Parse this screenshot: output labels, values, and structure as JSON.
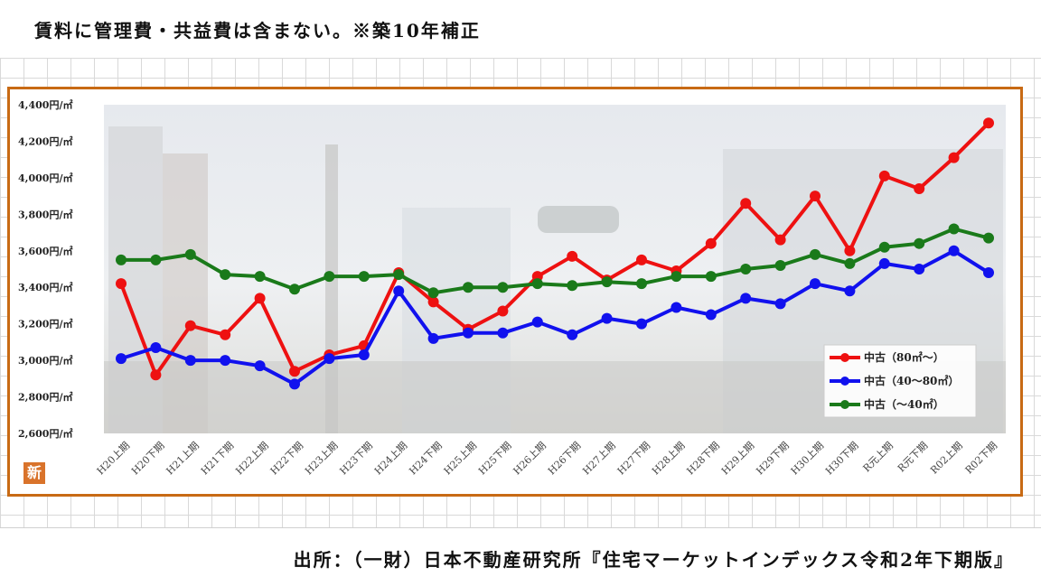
{
  "header": {
    "note": "賃料に管理費・共益費は含まない。※築10年補正"
  },
  "footer": {
    "source": "出所：（一財）日本不動産研究所『住宅マーケットインデックス令和2年下期版』"
  },
  "logo": {
    "label": "新"
  },
  "chart_data": {
    "type": "line",
    "categories": [
      "H20上期",
      "H20下期",
      "H21上期",
      "H21下期",
      "H22上期",
      "H22下期",
      "H23上期",
      "H23下期",
      "H24上期",
      "H24下期",
      "H25上期",
      "H25下期",
      "H26上期",
      "H26下期",
      "H27上期",
      "H27下期",
      "H28上期",
      "H28下期",
      "H29上期",
      "H29下期",
      "H30上期",
      "H30下期",
      "R元上期",
      "R元下期",
      "R02上期",
      "R02下期"
    ],
    "y_tick_labels": [
      "2,600円/㎡",
      "2,800円/㎡",
      "3,000円/㎡",
      "3,200円/㎡",
      "3,400円/㎡",
      "3,600円/㎡",
      "3,800円/㎡",
      "4,000円/㎡",
      "4,200円/㎡",
      "4,400円/㎡"
    ],
    "y_ticks": [
      2600,
      2800,
      3000,
      3200,
      3400,
      3600,
      3800,
      4000,
      4200,
      4400
    ],
    "ylim": [
      2600,
      4400
    ],
    "grid": false,
    "legend_position": "bottom-right",
    "series": [
      {
        "name": "中古（80㎡～）",
        "color": "#ee1111",
        "values": [
          3420,
          2920,
          3190,
          3140,
          3340,
          2940,
          3030,
          3080,
          3480,
          3320,
          3170,
          3270,
          3460,
          3570,
          3440,
          3550,
          3490,
          3640,
          3860,
          3660,
          3900,
          3600,
          4010,
          3940,
          4110,
          4300
        ]
      },
      {
        "name": "中古（40～80㎡）",
        "color": "#1111ee",
        "values": [
          3010,
          3070,
          3000,
          3000,
          2970,
          2870,
          3010,
          3030,
          3380,
          3120,
          3150,
          3150,
          3210,
          3140,
          3230,
          3200,
          3290,
          3250,
          3340,
          3310,
          3420,
          3380,
          3530,
          3500,
          3600,
          3480
        ]
      },
      {
        "name": "中古（～40㎡）",
        "color": "#1a7a1a",
        "values": [
          3550,
          3550,
          3580,
          3470,
          3460,
          3390,
          3460,
          3460,
          3470,
          3370,
          3400,
          3400,
          3420,
          3410,
          3430,
          3420,
          3460,
          3460,
          3500,
          3520,
          3580,
          3530,
          3620,
          3640,
          3720,
          3670
        ]
      }
    ]
  }
}
